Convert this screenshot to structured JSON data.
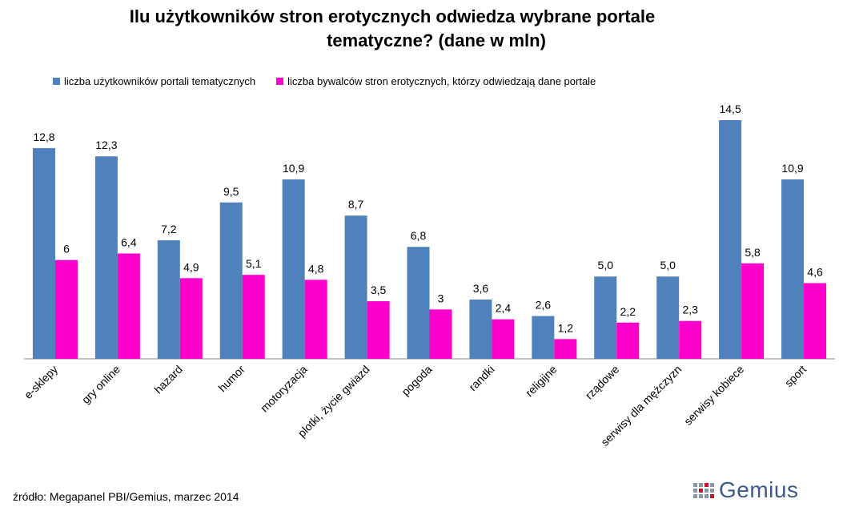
{
  "title_line1": "Ilu użytkowników stron erotycznych odwiedza wybrane portale",
  "title_line2": "tematyczne? (dane w mln)",
  "source": "źródło: Megapanel PBI/Gemius, marzec 2014",
  "logo_text": "Gemius",
  "colors": {
    "series1": "#4f81bd",
    "series2": "#ff00cc"
  },
  "chart_data": {
    "type": "bar",
    "title": "Ilu użytkowników stron erotycznych odwiedza wybrane portale tematyczne? (dane w mln)",
    "categories": [
      "e-sklepy",
      "gry online",
      "hazard",
      "humor",
      "motoryzacja",
      "plotki, życie gwiazd",
      "pogoda",
      "randki",
      "religijne",
      "rządowe",
      "serwisy dla mężczyzn",
      "serwisy kobiece",
      "sport"
    ],
    "series": [
      {
        "name": "liczba użytkowników portali tematycznych",
        "values": [
          12.8,
          12.3,
          7.2,
          9.5,
          10.9,
          8.7,
          6.8,
          3.6,
          2.6,
          5.0,
          5.0,
          14.5,
          10.9
        ],
        "labels": [
          "12,8",
          "12,3",
          "7,2",
          "9,5",
          "10,9",
          "8,7",
          "6,8",
          "3,6",
          "2,6",
          "5,0",
          "5,0",
          "14,5",
          "10,9"
        ]
      },
      {
        "name": "liczba bywalców stron erotycznych, którzy odwiedzają dane portale",
        "values": [
          6,
          6.4,
          4.9,
          5.1,
          4.8,
          3.5,
          3,
          2.4,
          1.2,
          2.2,
          2.3,
          5.8,
          4.6
        ],
        "labels": [
          "6",
          "6,4",
          "4,9",
          "5,1",
          "4,8",
          "3,5",
          "3",
          "2,4",
          "1,2",
          "2,2",
          "2,3",
          "5,8",
          "4,6"
        ]
      }
    ],
    "ylim": [
      0,
      16
    ],
    "grid": false,
    "legend_position": "top"
  }
}
